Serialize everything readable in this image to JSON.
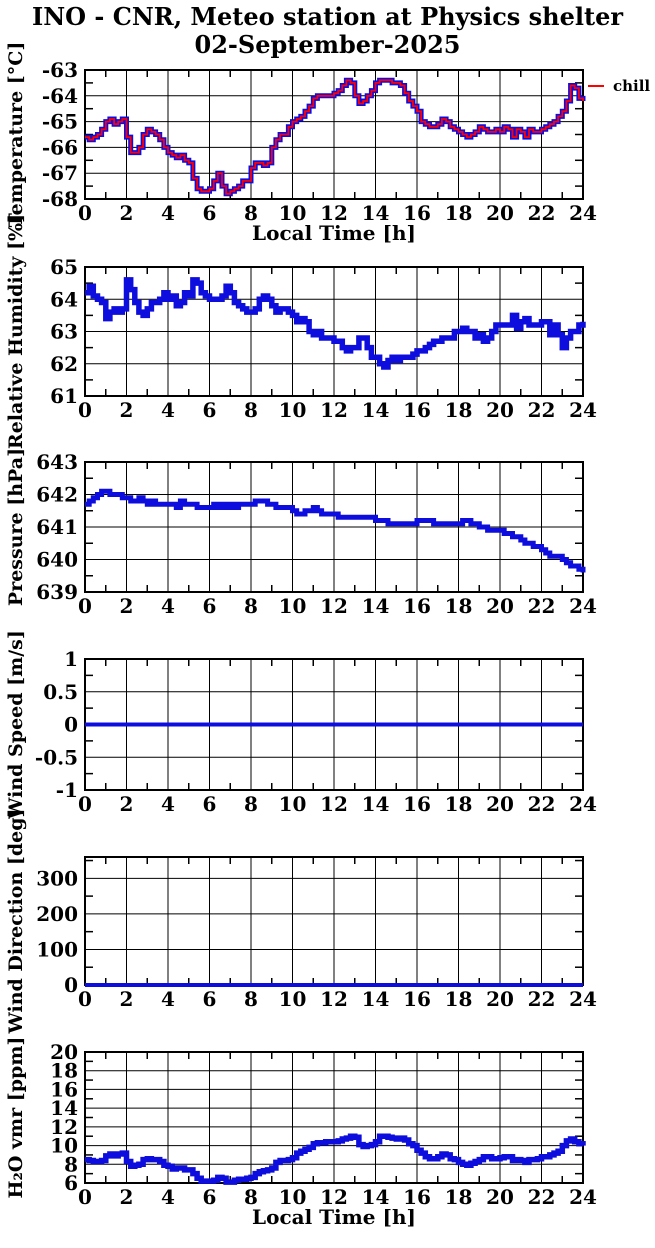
{
  "title": {
    "line1": "INO - CNR, Meteo station at Physics shelter",
    "line2": "02-September-2025"
  },
  "legend": {
    "label": "chill",
    "color": "#ff0000"
  },
  "colors": {
    "data_blue": "#0d0ddd",
    "chill_red": "#ff0000",
    "axis_black": "#000000",
    "background": "#ffffff"
  },
  "x_axis": {
    "label": "Local Time [h]",
    "min": 0,
    "max": 24,
    "major_step": 2,
    "minor_step": 1,
    "tick_labels": [
      "0",
      "2",
      "4",
      "6",
      "8",
      "10",
      "12",
      "14",
      "16",
      "18",
      "20",
      "22",
      "24"
    ]
  },
  "chart_data": [
    {
      "id": "temperature",
      "type": "line",
      "ylabel": "Temperature [°C]",
      "xlabel": "Local Time [h]",
      "show_x_label": true,
      "ylim": [
        -68,
        -63
      ],
      "y_tick_values": [
        -63,
        -64,
        -65,
        -66,
        -67,
        -68
      ],
      "y_tick_labels": [
        "-63",
        "-64",
        "-65",
        "-66",
        "-67",
        "-68"
      ],
      "y_minor_step": 0.5,
      "x_start": 0,
      "x_step": 0.2,
      "legend": {
        "label": "chill",
        "color": "#ff0000"
      },
      "series": [
        {
          "name": "temperature",
          "color": "#0d0ddd",
          "width": 5,
          "values": [
            -65.6,
            -65.7,
            -65.6,
            -65.5,
            -65.3,
            -65.0,
            -64.9,
            -65.1,
            -65.0,
            -64.9,
            -65.6,
            -66.2,
            -66.2,
            -66.0,
            -65.5,
            -65.3,
            -65.4,
            -65.5,
            -65.7,
            -66.0,
            -66.2,
            -66.3,
            -66.4,
            -66.3,
            -66.5,
            -66.6,
            -67.2,
            -67.6,
            -67.7,
            -67.7,
            -67.6,
            -67.3,
            -67.0,
            -67.5,
            -67.8,
            -67.7,
            -67.6,
            -67.5,
            -67.3,
            -67.3,
            -66.8,
            -66.6,
            -66.6,
            -66.7,
            -66.6,
            -66.0,
            -65.7,
            -65.5,
            -65.5,
            -65.2,
            -65.0,
            -64.9,
            -64.8,
            -64.6,
            -64.4,
            -64.1,
            -64.0,
            -64.0,
            -64.0,
            -64.0,
            -63.9,
            -63.8,
            -63.6,
            -63.4,
            -63.5,
            -64.0,
            -64.3,
            -64.2,
            -64.0,
            -63.8,
            -63.5,
            -63.4,
            -63.4,
            -63.4,
            -63.5,
            -63.5,
            -63.6,
            -63.9,
            -64.2,
            -64.4,
            -64.6,
            -65.0,
            -65.1,
            -65.2,
            -65.2,
            -65.1,
            -64.9,
            -65.0,
            -65.2,
            -65.3,
            -65.4,
            -65.5,
            -65.6,
            -65.5,
            -65.4,
            -65.2,
            -65.3,
            -65.4,
            -65.4,
            -65.3,
            -65.4,
            -65.2,
            -65.3,
            -65.6,
            -65.3,
            -65.4,
            -65.6,
            -65.3,
            -65.4,
            -65.4,
            -65.3,
            -65.2,
            -65.1,
            -65.0,
            -64.8,
            -64.6,
            -64.2,
            -63.6,
            -63.7,
            -64.1,
            -64.2
          ]
        },
        {
          "name": "chill",
          "color": "#ff0000",
          "width": 1.8,
          "values_from": "temperature"
        }
      ]
    },
    {
      "id": "humidity",
      "type": "line",
      "ylabel": "Relative Humidity [%]",
      "xlabel": "",
      "show_x_label": false,
      "ylim": [
        61,
        65
      ],
      "y_tick_values": [
        61,
        62,
        63,
        64,
        65
      ],
      "y_tick_labels": [
        "61",
        "62",
        "63",
        "64",
        "65"
      ],
      "y_minor_step": 0.5,
      "x_start": 0,
      "x_step": 0.2,
      "series": [
        {
          "name": "relative-humidity",
          "color": "#0d0ddd",
          "width": 5.5,
          "values": [
            64.2,
            64.4,
            64.1,
            64.0,
            63.9,
            63.4,
            63.6,
            63.7,
            63.6,
            63.7,
            64.6,
            64.3,
            63.9,
            63.6,
            63.5,
            63.7,
            63.9,
            63.9,
            64.0,
            64.2,
            64.0,
            64.1,
            63.8,
            63.9,
            64.2,
            64.1,
            64.6,
            64.5,
            64.2,
            64.1,
            64.0,
            64.0,
            64.0,
            64.1,
            64.4,
            64.2,
            63.9,
            63.8,
            63.7,
            63.6,
            63.6,
            63.7,
            64.0,
            64.1,
            64.0,
            63.8,
            63.6,
            63.7,
            63.7,
            63.6,
            63.5,
            63.3,
            63.4,
            63.3,
            63.0,
            62.9,
            63.0,
            62.8,
            62.8,
            62.8,
            62.7,
            62.7,
            62.5,
            62.4,
            62.5,
            62.5,
            62.8,
            62.8,
            62.5,
            62.2,
            62.2,
            62.0,
            61.9,
            62.1,
            62.2,
            62.1,
            62.2,
            62.2,
            62.2,
            62.3,
            62.4,
            62.4,
            62.5,
            62.6,
            62.7,
            62.7,
            62.8,
            62.8,
            62.8,
            63.0,
            63.0,
            63.1,
            63.0,
            63.0,
            62.8,
            62.9,
            62.7,
            62.8,
            63.0,
            63.2,
            63.2,
            63.2,
            63.2,
            63.5,
            63.1,
            63.3,
            63.4,
            63.2,
            63.2,
            63.2,
            63.3,
            63.3,
            62.9,
            63.2,
            62.9,
            62.5,
            62.8,
            63.0,
            63.0,
            63.2,
            63.3
          ]
        }
      ]
    },
    {
      "id": "pressure",
      "type": "line",
      "ylabel": "Pressure [hPa]",
      "xlabel": "",
      "show_x_label": false,
      "ylim": [
        639,
        643
      ],
      "y_tick_values": [
        639,
        640,
        641,
        642,
        643
      ],
      "y_tick_labels": [
        "639",
        "640",
        "641",
        "642",
        "643"
      ],
      "y_minor_step": 0.5,
      "x_start": 0,
      "x_step": 0.2,
      "series": [
        {
          "name": "pressure",
          "color": "#0d0ddd",
          "width": 5,
          "values": [
            641.7,
            641.8,
            641.9,
            642.0,
            642.1,
            642.1,
            642.0,
            642.0,
            642.0,
            641.9,
            641.9,
            641.8,
            641.8,
            641.9,
            641.8,
            641.7,
            641.8,
            641.7,
            641.7,
            641.7,
            641.7,
            641.7,
            641.6,
            641.8,
            641.7,
            641.7,
            641.7,
            641.6,
            641.6,
            641.6,
            641.6,
            641.7,
            641.6,
            641.7,
            641.6,
            641.7,
            641.6,
            641.7,
            641.7,
            641.7,
            641.7,
            641.8,
            641.8,
            641.8,
            641.7,
            641.7,
            641.6,
            641.6,
            641.6,
            641.6,
            641.5,
            641.4,
            641.4,
            641.5,
            641.5,
            641.6,
            641.5,
            641.4,
            641.4,
            641.4,
            641.4,
            641.3,
            641.3,
            641.3,
            641.3,
            641.3,
            641.3,
            641.3,
            641.3,
            641.3,
            641.2,
            641.2,
            641.2,
            641.1,
            641.1,
            641.1,
            641.1,
            641.1,
            641.1,
            641.1,
            641.2,
            641.2,
            641.2,
            641.2,
            641.1,
            641.1,
            641.1,
            641.1,
            641.1,
            641.1,
            641.1,
            641.2,
            641.2,
            641.1,
            641.1,
            641.0,
            641.0,
            640.9,
            640.9,
            640.9,
            640.9,
            640.8,
            640.8,
            640.7,
            640.7,
            640.6,
            640.5,
            640.5,
            640.4,
            640.4,
            640.3,
            640.2,
            640.1,
            640.1,
            640.1,
            640.0,
            639.9,
            639.8,
            639.8,
            639.7,
            639.6
          ]
        }
      ]
    },
    {
      "id": "wind-speed",
      "type": "line",
      "ylabel": "Wind Speed [m/s]",
      "xlabel": "",
      "show_x_label": false,
      "ylim": [
        -1,
        1
      ],
      "y_tick_values": [
        -1,
        -0.5,
        0,
        0.5,
        1
      ],
      "y_tick_labels": [
        "-1",
        "-0.5",
        "0",
        "0.5",
        "1"
      ],
      "y_minor_step": 0.25,
      "x_start": 0,
      "x_step": 0.2,
      "series": [
        {
          "name": "wind-speed",
          "color": "#0d0ddd",
          "width": 4,
          "constant": 0
        }
      ]
    },
    {
      "id": "wind-direction",
      "type": "line",
      "ylabel": "Wind Direction [deg]",
      "xlabel": "",
      "show_x_label": false,
      "ylim": [
        0,
        360
      ],
      "y_tick_values": [
        0,
        100,
        200,
        300
      ],
      "y_tick_labels": [
        "0",
        "100",
        "200",
        "300"
      ],
      "y_minor_step": 50,
      "x_start": 0,
      "x_step": 0.2,
      "series": [
        {
          "name": "wind-direction",
          "color": "#0d0ddd",
          "width": 4,
          "constant": 0
        }
      ]
    },
    {
      "id": "h2o-vmr",
      "type": "line",
      "ylabel": "H₂O vmr [ppm]",
      "xlabel": "Local Time [h]",
      "show_x_label": true,
      "ylim": [
        6,
        20
      ],
      "y_tick_values": [
        6,
        8,
        10,
        12,
        14,
        16,
        18,
        20
      ],
      "y_tick_labels": [
        "6",
        "8",
        "10",
        "12",
        "14",
        "16",
        "18",
        "20"
      ],
      "y_minor_step": 1,
      "x_start": 0,
      "x_step": 0.2,
      "series": [
        {
          "name": "h2o-vmr",
          "color": "#0d0ddd",
          "width": 5.5,
          "values": [
            8.5,
            8.4,
            8.3,
            8.3,
            8.4,
            8.9,
            9.1,
            8.9,
            9.1,
            9.2,
            8.3,
            7.8,
            7.9,
            8.0,
            8.5,
            8.6,
            8.5,
            8.5,
            8.3,
            7.9,
            7.8,
            7.5,
            7.6,
            7.6,
            7.4,
            7.4,
            7.0,
            6.5,
            6.2,
            6.2,
            6.2,
            6.3,
            6.6,
            6.5,
            6.1,
            6.1,
            6.3,
            6.4,
            6.4,
            6.5,
            6.6,
            7.0,
            7.2,
            7.3,
            7.4,
            7.6,
            8.2,
            8.4,
            8.4,
            8.5,
            8.7,
            9.2,
            9.4,
            9.6,
            9.8,
            10.2,
            10.3,
            10.3,
            10.4,
            10.4,
            10.4,
            10.5,
            10.7,
            10.8,
            11.0,
            10.9,
            10.1,
            9.9,
            10.0,
            10.1,
            10.4,
            11.0,
            11.0,
            10.9,
            10.8,
            10.7,
            10.8,
            10.6,
            10.2,
            10.0,
            9.5,
            9.2,
            8.8,
            8.6,
            8.6,
            8.8,
            9.1,
            9.0,
            8.6,
            8.5,
            8.2,
            8.0,
            7.9,
            8.1,
            8.3,
            8.5,
            8.8,
            8.8,
            8.6,
            8.6,
            8.7,
            8.8,
            8.8,
            8.4,
            8.5,
            8.4,
            8.2,
            8.5,
            8.5,
            8.6,
            8.8,
            8.8,
            9.0,
            9.2,
            9.4,
            10.0,
            10.5,
            10.7,
            10.4,
            10.2,
            10.0
          ]
        }
      ]
    }
  ]
}
